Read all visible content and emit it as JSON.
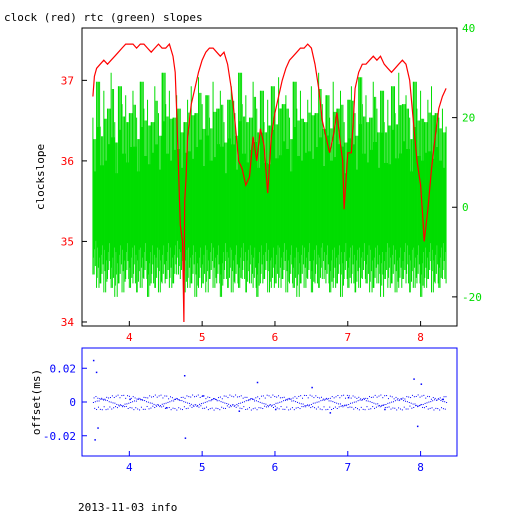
{
  "title": "clock (red) rtc (green) slopes",
  "footer": "2013-11-03 info",
  "colors": {
    "clock": "#ff0000",
    "rtc": "#00dd00",
    "offset": "#0000ff",
    "axis_main": "#000000"
  },
  "chart_data": [
    {
      "type": "line",
      "ylabel": "clockslope",
      "xlim": [
        3.35,
        8.5
      ],
      "ylim_left": [
        33.95,
        37.65
      ],
      "ylim_right": [
        -26.5,
        40
      ],
      "xticks": [
        "4",
        "5",
        "6",
        "7",
        "8"
      ],
      "yticks_left": [
        "34",
        "35",
        "36",
        "37"
      ],
      "yticks_right": [
        "-20",
        "0",
        "20",
        "40"
      ],
      "series": [
        {
          "axis": "left",
          "x": [
            3.5,
            3.52,
            3.55,
            3.6,
            3.65,
            3.7,
            3.75,
            3.8,
            3.85,
            3.9,
            3.95,
            4.0,
            4.05,
            4.1,
            4.15,
            4.2,
            4.25,
            4.3,
            4.35,
            4.4,
            4.45,
            4.5,
            4.55,
            4.6,
            4.63,
            4.65,
            4.7,
            4.73,
            4.75,
            4.76,
            4.78,
            4.8,
            4.85,
            4.9,
            4.95,
            5.0,
            5.05,
            5.1,
            5.15,
            5.2,
            5.25,
            5.3,
            5.35,
            5.4,
            5.45,
            5.5,
            5.55,
            5.6,
            5.65,
            5.7,
            5.75,
            5.8,
            5.85,
            5.9,
            5.95,
            6.0,
            6.05,
            6.1,
            6.15,
            6.2,
            6.25,
            6.3,
            6.35,
            6.4,
            6.45,
            6.5,
            6.55,
            6.6,
            6.65,
            6.7,
            6.75,
            6.8,
            6.85,
            6.9,
            6.93,
            6.95,
            7.0,
            7.05,
            7.1,
            7.15,
            7.2,
            7.25,
            7.3,
            7.35,
            7.4,
            7.45,
            7.5,
            7.55,
            7.6,
            7.65,
            7.7,
            7.75,
            7.8,
            7.85,
            7.9,
            7.95,
            8.0,
            8.03,
            8.05,
            8.1,
            8.15,
            8.2,
            8.25,
            8.3,
            8.35
          ],
          "y": [
            36.8,
            37.05,
            37.15,
            37.2,
            37.25,
            37.2,
            37.25,
            37.3,
            37.35,
            37.4,
            37.45,
            37.45,
            37.45,
            37.4,
            37.45,
            37.45,
            37.4,
            37.35,
            37.4,
            37.45,
            37.4,
            37.4,
            37.45,
            37.3,
            37.1,
            36.6,
            35.2,
            35.0,
            34.0,
            35.5,
            35.8,
            36.3,
            36.7,
            36.9,
            37.1,
            37.25,
            37.35,
            37.4,
            37.4,
            37.35,
            37.3,
            37.35,
            37.2,
            36.9,
            36.5,
            36.0,
            35.9,
            35.7,
            35.8,
            36.3,
            36.0,
            36.4,
            36.2,
            35.6,
            36.3,
            36.6,
            36.8,
            37.0,
            37.15,
            37.25,
            37.3,
            37.35,
            37.4,
            37.4,
            37.45,
            37.4,
            37.2,
            36.9,
            36.5,
            36.3,
            36.1,
            36.3,
            36.6,
            36.2,
            36.0,
            35.4,
            36.1,
            36.1,
            36.9,
            37.1,
            37.2,
            37.2,
            37.25,
            37.3,
            37.25,
            37.3,
            37.2,
            37.15,
            37.1,
            37.15,
            37.2,
            37.25,
            37.2,
            37.0,
            36.5,
            36.0,
            35.7,
            35.3,
            35.0,
            35.4,
            35.9,
            36.3,
            36.65,
            36.8,
            36.9
          ],
          "color_key": "clock"
        },
        {
          "axis": "right",
          "x": [
            3.5,
            3.55,
            3.6,
            3.65,
            3.7,
            3.75,
            3.8,
            3.85,
            3.9,
            3.95,
            4.0,
            4.05,
            4.1,
            4.15,
            4.2,
            4.25,
            4.3,
            4.35,
            4.4,
            4.45,
            4.5,
            4.55,
            4.6,
            4.65,
            4.7,
            4.75,
            4.8,
            4.85,
            4.9,
            4.95,
            5.0,
            5.05,
            5.1,
            5.15,
            5.2,
            5.25,
            5.3,
            5.35,
            5.4,
            5.45,
            5.5,
            5.55,
            5.6,
            5.65,
            5.7,
            5.75,
            5.8,
            5.85,
            5.9,
            5.95,
            6.0,
            6.05,
            6.1,
            6.15,
            6.2,
            6.25,
            6.3,
            6.35,
            6.4,
            6.45,
            6.5,
            6.55,
            6.6,
            6.65,
            6.7,
            6.75,
            6.8,
            6.85,
            6.9,
            6.95,
            7.0,
            7.05,
            7.1,
            7.15,
            7.2,
            7.25,
            7.3,
            7.35,
            7.4,
            7.45,
            7.5,
            7.55,
            7.6,
            7.65,
            7.7,
            7.75,
            7.8,
            7.85,
            7.9,
            7.95,
            8.0,
            8.05,
            8.1,
            8.15,
            8.2,
            8.25,
            8.3,
            8.35
          ],
          "low": [
            -15,
            -18,
            -17,
            -19,
            -16,
            -18,
            -20,
            -17,
            -19,
            -16,
            -18,
            -17,
            -19,
            -18,
            -16,
            -20,
            -17,
            -18,
            -19,
            -17,
            -16,
            -18,
            -17,
            -15,
            -16,
            -19,
            -18,
            -17,
            -20,
            -18,
            -17,
            -19,
            -16,
            -18,
            -17,
            -20,
            -16,
            -18,
            -19,
            -17,
            -18,
            -16,
            -19,
            -17,
            -18,
            -20,
            -17,
            -16,
            -19,
            -18,
            -17,
            -18,
            -16,
            -19,
            -17,
            -18,
            -20,
            -17,
            -18,
            -16,
            -19,
            -17,
            -18,
            -16,
            -17,
            -19,
            -18,
            -17,
            -20,
            -16,
            -18,
            -17,
            -19,
            -18,
            -16,
            -17,
            -19,
            -18,
            -17,
            -20,
            -16,
            -18,
            -17,
            -19,
            -18,
            -16,
            -17,
            -19,
            -18,
            -17,
            -20,
            -18,
            -16,
            -19,
            -17,
            -18,
            -16,
            -17
          ],
          "high": [
            20,
            28,
            18,
            26,
            22,
            30,
            19,
            27,
            23,
            25,
            21,
            26,
            20,
            28,
            22,
            24,
            19,
            27,
            21,
            30,
            23,
            26,
            20,
            25,
            22,
            19,
            24,
            27,
            21,
            29,
            23,
            25,
            20,
            28,
            22,
            26,
            19,
            24,
            27,
            21,
            30,
            23,
            25,
            20,
            28,
            22,
            26,
            19,
            24,
            27,
            21,
            29,
            23,
            25,
            20,
            28,
            22,
            26,
            19,
            24,
            27,
            21,
            30,
            23,
            25,
            20,
            28,
            22,
            26,
            19,
            24,
            27,
            21,
            29,
            23,
            25,
            20,
            28,
            22,
            26,
            19,
            24,
            27,
            21,
            30,
            23,
            25,
            20,
            28,
            22,
            26,
            19,
            24,
            27,
            21,
            20,
            22,
            18
          ],
          "color_key": "rtc"
        }
      ]
    },
    {
      "type": "scatter",
      "ylabel": "offset(ms)",
      "xlim": [
        3.35,
        8.5
      ],
      "ylim": [
        -0.032,
        0.032
      ],
      "xticks": [
        "4",
        "5",
        "6",
        "7",
        "8"
      ],
      "yticks": [
        "0.02",
        "0",
        "-0.02"
      ],
      "series": [
        {
          "x": [
            3.5,
            3.52,
            3.54,
            3.56,
            4.0,
            4.5,
            4.75,
            4.76,
            5.0,
            5.5,
            5.75,
            6.0,
            6.5,
            6.75,
            7.0,
            7.5,
            7.9,
            7.95,
            8.0,
            8.3
          ],
          "y": [
            0.025,
            -0.022,
            0.018,
            -0.015,
            0.002,
            -0.003,
            0.016,
            -0.021,
            0.004,
            -0.005,
            0.012,
            -0.004,
            0.009,
            -0.006,
            0.003,
            -0.004,
            0.014,
            -0.014,
            0.011,
            0.002
          ],
          "color_key": "offset"
        }
      ]
    }
  ]
}
